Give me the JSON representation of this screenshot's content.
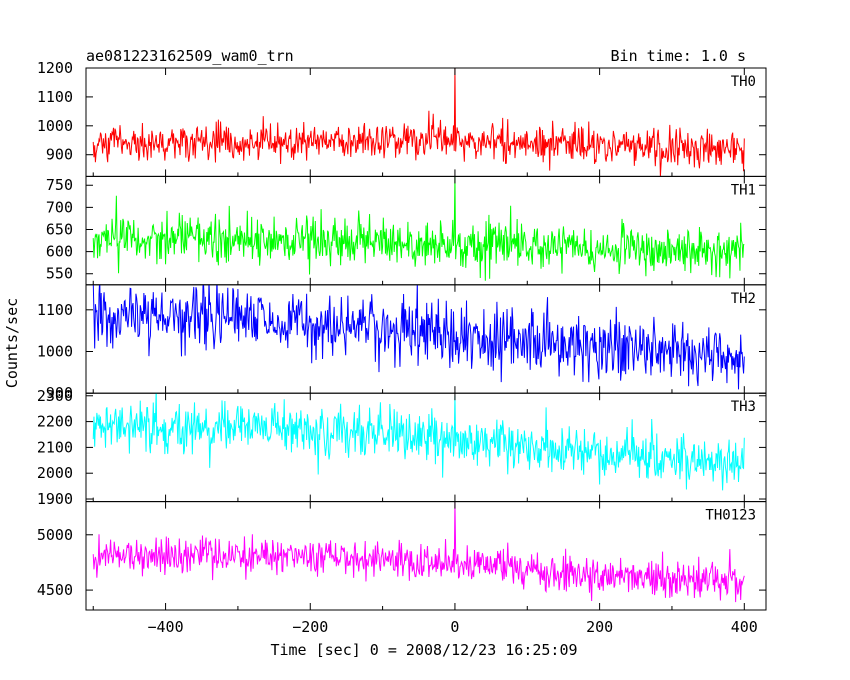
{
  "header": {
    "obs_id": "ae081223162509_wam0_trn",
    "bin_time": "Bin time: 1.0 s"
  },
  "axes": {
    "xlabel": "Time [sec] 0 = 2008/12/23 16:25:09",
    "ylabel": "Counts/sec"
  },
  "chart_data": {
    "type": "line",
    "title": "ae081223162509_wam0_trn",
    "subtitle": "Bin time: 1.0 s",
    "xlabel": "Time [sec] 0 = 2008/12/23 16:25:09",
    "ylabel": "Counts/sec",
    "xlim": [
      -510,
      430
    ],
    "x_ticks": [
      -400,
      -200,
      0,
      200,
      400
    ],
    "x_tick_labels": [
      "−400",
      "−200",
      "0",
      "200",
      "400"
    ],
    "x_range_data": [
      -500,
      400
    ],
    "sampling": "1.0 s bins",
    "grid": false,
    "legend": "none",
    "panels": [
      {
        "name": "TH0",
        "color": "#ff0000",
        "ylim": [
          825,
          1200
        ],
        "y_ticks": [
          900,
          1000,
          1100,
          1200
        ],
        "trend": [
          [
            -500,
            935
          ],
          [
            -250,
            945
          ],
          [
            0,
            955
          ],
          [
            200,
            935
          ],
          [
            400,
            920
          ]
        ],
        "noise_sd": 32,
        "spike": {
          "x": 0,
          "y": 1200
        }
      },
      {
        "name": "TH1",
        "color": "#00ff00",
        "ylim": [
          525,
          770
        ],
        "y_ticks": [
          550,
          600,
          650,
          700,
          750
        ],
        "trend": [
          [
            -500,
            632
          ],
          [
            -250,
            628
          ],
          [
            0,
            618
          ],
          [
            200,
            608
          ],
          [
            400,
            600
          ]
        ],
        "noise_sd": 26,
        "spike": {
          "x": 0,
          "y": 770
        }
      },
      {
        "name": "TH2",
        "color": "#0000ff",
        "ylim": [
          900,
          1160
        ],
        "y_ticks": [
          900,
          1000,
          1100
        ],
        "trend": [
          [
            -500,
            1090
          ],
          [
            -250,
            1075
          ],
          [
            0,
            1040
          ],
          [
            200,
            1005
          ],
          [
            400,
            985
          ]
        ],
        "noise_sd": 38,
        "spike": null
      },
      {
        "name": "TH3",
        "color": "#00ffff",
        "ylim": [
          1890,
          2310
        ],
        "y_ticks": [
          1900,
          2000,
          2100,
          2200,
          2300
        ],
        "trend": [
          [
            -500,
            2190
          ],
          [
            -250,
            2180
          ],
          [
            0,
            2140
          ],
          [
            200,
            2080
          ],
          [
            400,
            2040
          ]
        ],
        "noise_sd": 48,
        "spike": {
          "x": 0,
          "y": 2300
        }
      },
      {
        "name": "TH0123",
        "color": "#ff00ff",
        "ylim": [
          4320,
          5300
        ],
        "y_ticks": [
          4500,
          5000
        ],
        "trend": [
          [
            -500,
            4820
          ],
          [
            -250,
            4810
          ],
          [
            0,
            4730
          ],
          [
            200,
            4620
          ],
          [
            400,
            4560
          ]
        ],
        "noise_sd": 85,
        "spike": {
          "x": 0,
          "y": 5300
        }
      }
    ]
  }
}
